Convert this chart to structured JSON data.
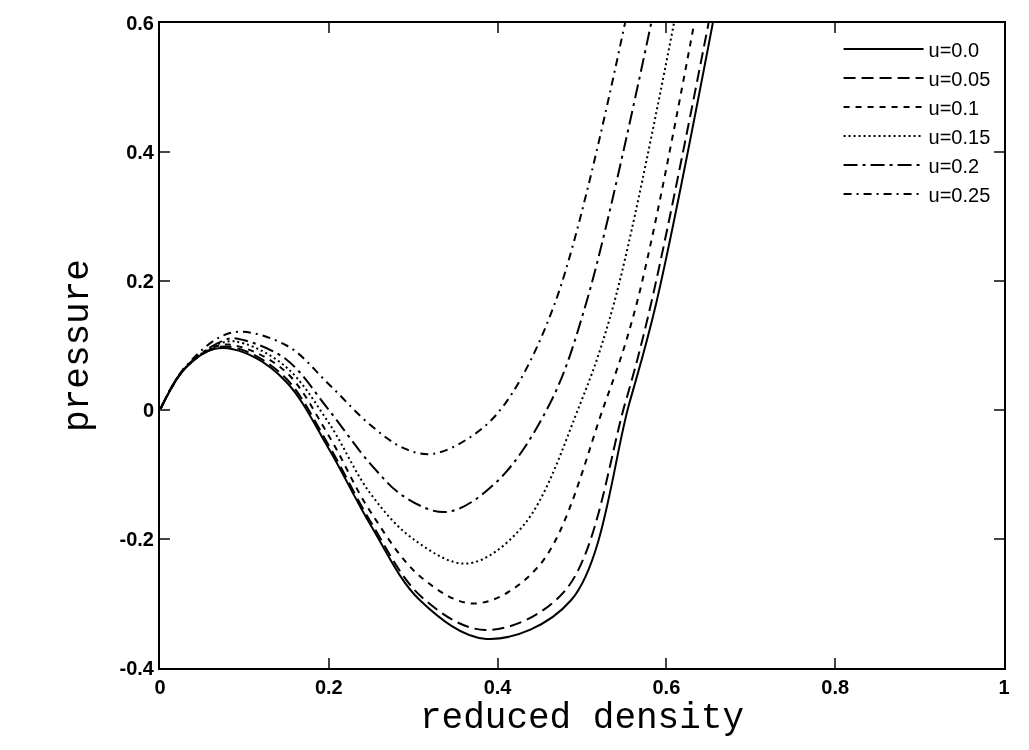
{
  "chart_data": {
    "type": "line",
    "xlabel": "reduced density",
    "ylabel": "pressure",
    "xlim": [
      0,
      1
    ],
    "xticks": [
      0,
      0.2,
      0.4,
      0.6,
      0.8,
      1
    ],
    "ylim": [
      -0.4,
      0.6
    ],
    "yticks": [
      -0.4,
      -0.2,
      0,
      0.2,
      0.4,
      0.6
    ],
    "legend": "top right",
    "marker": "none",
    "series": [
      {
        "name": "u=0.0",
        "color": "#000000",
        "line_style": "solid",
        "x": [
          0,
          0.03,
          0.065,
          0.1,
          0.15,
          0.2,
          0.249,
          0.308,
          0.387,
          0.487,
          0.556,
          0.588,
          0.655
        ],
        "values": [
          0,
          0.065,
          0.095,
          0.089,
          0.043,
          -0.06,
          -0.177,
          -0.295,
          -0.355,
          -0.295,
          0.01,
          0.166,
          0.6
        ]
      },
      {
        "name": "u=0.05",
        "color": "#000000",
        "line_style": "dashed",
        "x": [
          0,
          0.03,
          0.067,
          0.1,
          0.15,
          0.2,
          0.249,
          0.31,
          0.386,
          0.48,
          0.551,
          0.582,
          0.65
        ],
        "values": [
          0,
          0.065,
          0.097,
          0.092,
          0.048,
          -0.055,
          -0.172,
          -0.29,
          -0.341,
          -0.28,
          0.01,
          0.166,
          0.6
        ]
      },
      {
        "name": "u=0.1",
        "color": "#000000",
        "line_style": "dashed",
        "x": [
          0,
          0.03,
          0.07,
          0.1,
          0.15,
          0.2,
          0.249,
          0.31,
          0.374,
          0.45,
          0.527,
          0.565,
          0.633
        ],
        "values": [
          0,
          0.065,
          0.1,
          0.096,
          0.058,
          -0.04,
          -0.157,
          -0.26,
          -0.3,
          -0.24,
          0.01,
          0.166,
          0.6
        ]
      },
      {
        "name": "u=0.15",
        "color": "#000000",
        "line_style": "dotted",
        "x": [
          0,
          0.03,
          0.075,
          0.1,
          0.15,
          0.2,
          0.249,
          0.3,
          0.364,
          0.43,
          0.498,
          0.538,
          0.609
        ],
        "values": [
          0,
          0.066,
          0.105,
          0.103,
          0.066,
          -0.02,
          -0.129,
          -0.2,
          -0.238,
          -0.18,
          0.01,
          0.166,
          0.6
        ]
      },
      {
        "name": "u=0.2",
        "color": "#000000",
        "line_style": "dashed",
        "x": [
          0,
          0.03,
          0.08,
          0.1,
          0.15,
          0.2,
          0.249,
          0.29,
          0.34,
          0.4,
          0.462,
          0.505,
          0.582
        ],
        "values": [
          0,
          0.066,
          0.11,
          0.108,
          0.078,
          0.0,
          -0.083,
          -0.135,
          -0.158,
          -0.11,
          0.01,
          0.166,
          0.6
        ]
      },
      {
        "name": "u=0.25",
        "color": "#000000",
        "line_style": "dotted",
        "x": [
          0,
          0.03,
          0.085,
          0.15,
          0.2,
          0.249,
          0.29,
          0.323,
          0.37,
          0.409,
          0.468,
          0.551
        ],
        "values": [
          0,
          0.067,
          0.12,
          0.1,
          0.04,
          -0.023,
          -0.06,
          -0.068,
          -0.04,
          0.01,
          0.166,
          0.6
        ]
      }
    ]
  }
}
